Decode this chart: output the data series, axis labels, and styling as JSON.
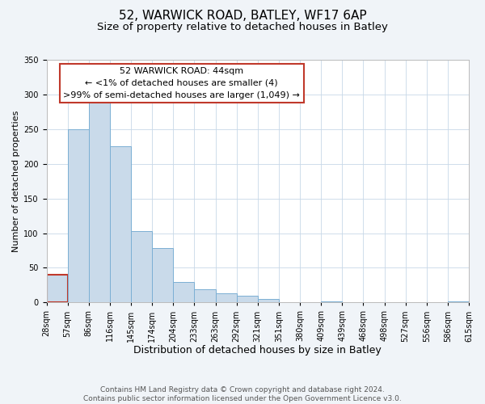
{
  "title": "52, WARWICK ROAD, BATLEY, WF17 6AP",
  "subtitle": "Size of property relative to detached houses in Batley",
  "xlabel": "Distribution of detached houses by size in Batley",
  "ylabel": "Number of detached properties",
  "bar_values": [
    40,
    250,
    290,
    225,
    103,
    78,
    30,
    19,
    13,
    10,
    5,
    0,
    0,
    1,
    0,
    0,
    0,
    0,
    0,
    2
  ],
  "bin_labels": [
    "28sqm",
    "57sqm",
    "86sqm",
    "116sqm",
    "145sqm",
    "174sqm",
    "204sqm",
    "233sqm",
    "263sqm",
    "292sqm",
    "321sqm",
    "351sqm",
    "380sqm",
    "409sqm",
    "439sqm",
    "468sqm",
    "498sqm",
    "527sqm",
    "556sqm",
    "586sqm",
    "615sqm"
  ],
  "bar_color": "#c9daea",
  "bar_edge_color": "#7bafd4",
  "highlight_bar_index": 0,
  "highlight_bar_edge_color": "#c0392b",
  "annotation_box_text": "52 WARWICK ROAD: 44sqm\n← <1% of detached houses are smaller (4)\n>99% of semi-detached houses are larger (1,049) →",
  "annotation_box_color": "white",
  "annotation_box_edge_color": "#c0392b",
  "ylim": [
    0,
    350
  ],
  "yticks": [
    0,
    50,
    100,
    150,
    200,
    250,
    300,
    350
  ],
  "footer_text": "Contains HM Land Registry data © Crown copyright and database right 2024.\nContains public sector information licensed under the Open Government Licence v3.0.",
  "background_color": "#f0f4f8",
  "plot_background_color": "#ffffff",
  "grid_color": "#c8d8e8",
  "title_fontsize": 11,
  "subtitle_fontsize": 9.5,
  "xlabel_fontsize": 9,
  "ylabel_fontsize": 8,
  "tick_fontsize": 7,
  "annotation_fontsize": 8,
  "footer_fontsize": 6.5
}
